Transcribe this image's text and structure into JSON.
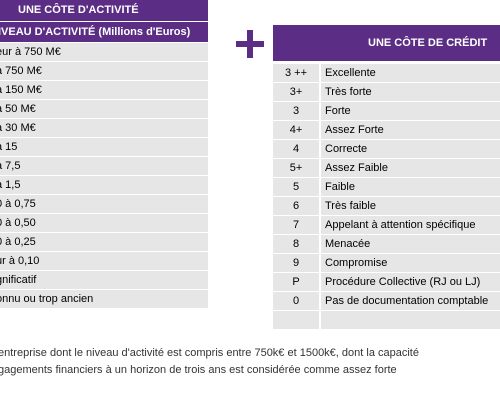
{
  "left_table": {
    "header_title": "UNE CÔTE D'ACTIVITÉ",
    "header_subtitle": "IVEAU D'ACTIVITÉ (Millions d'Euros)",
    "rows": [
      "eur à 750 M€",
      "à 750 M€",
      "à 150 M€",
      "à 50 M€",
      "à 30 M€",
      "à 15",
      "à 7,5",
      "à 1,5",
      "0 à 0,75",
      "0 à 0,50",
      "0 à 0,25",
      "ur à 0,10",
      "gnificatif",
      "onnu ou trop ancien"
    ]
  },
  "plus_symbol": "plus-icon",
  "right_table": {
    "header_title": "UNE CÔTE DE CRÉDIT",
    "rows": [
      {
        "code": "3 ++",
        "label": "Excellente"
      },
      {
        "code": "3+",
        "label": "Très forte"
      },
      {
        "code": "3",
        "label": "Forte"
      },
      {
        "code": "4+",
        "label": "Assez Forte"
      },
      {
        "code": "4",
        "label": "Correcte"
      },
      {
        "code": "5+",
        "label": "Assez Faible"
      },
      {
        "code": "5",
        "label": "Faible"
      },
      {
        "code": "6",
        "label": "Très faible"
      },
      {
        "code": "7",
        "label": "Appelant à attention spécifique"
      },
      {
        "code": "8",
        "label": "Menacée"
      },
      {
        "code": "9",
        "label": "Compromise"
      },
      {
        "code": "P",
        "label": "Procédure Collective (RJ ou LJ)"
      },
      {
        "code": "0",
        "label": "Pas de documentation comptable"
      },
      {
        "code": "",
        "label": ""
      }
    ]
  },
  "caption": {
    "line1": "entreprise dont le niveau d'activité est compris entre 750k€ et 1500k€, dont la capacité",
    "line2": "gagements financiers à un horizon de trois ans est considérée comme assez forte"
  },
  "colors": {
    "header_purple": "#5b2d84",
    "row_gray": "#e6e6e6"
  }
}
